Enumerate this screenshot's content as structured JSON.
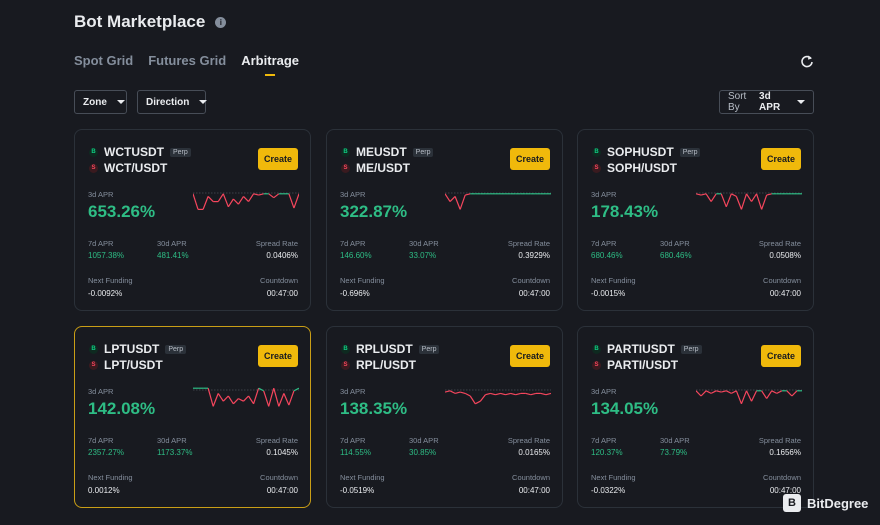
{
  "header": {
    "title": "Bot Marketplace",
    "info_icon": "info-icon"
  },
  "tabs": [
    {
      "label": "Spot Grid",
      "active": false
    },
    {
      "label": "Futures Grid",
      "active": false
    },
    {
      "label": "Arbitrage",
      "active": true
    }
  ],
  "filters": {
    "zone": "Zone",
    "direction": "Direction",
    "sort_label": "Sort By",
    "sort_value": "3d APR"
  },
  "labels": {
    "apr3d": "3d APR",
    "apr7d": "7d APR",
    "apr30d": "30d APR",
    "spread": "Spread Rate",
    "next_funding": "Next Funding",
    "countdown": "Countdown",
    "create": "Create",
    "perp": "Perp",
    "badge_b": "B",
    "badge_s": "S"
  },
  "accent_color": "#f0b90b",
  "positive_color": "#2ebd85",
  "negative_color": "#f6465d",
  "cards": [
    {
      "perp": "WCTUSDT",
      "spot": "WCT/USDT",
      "apr3d": "653.26%",
      "apr7d": "1057.38%",
      "apr30d": "481.41%",
      "spread": "0.0406%",
      "funding": "-0.0092%",
      "countdown": "00:47:00",
      "highlight": false,
      "spark": [
        0.3,
        0.9,
        0.9,
        0.4,
        0.6,
        0.6,
        0.3,
        0.8,
        0.5,
        0.7,
        0.4,
        0.6,
        0.3,
        0.35,
        0.3,
        0.3,
        0.45,
        0.3,
        0.3,
        0.3,
        0.85,
        0.3
      ]
    },
    {
      "perp": "MEUSDT",
      "spot": "ME/USDT",
      "apr3d": "322.87%",
      "apr7d": "146.60%",
      "apr30d": "33.07%",
      "spread": "0.3929%",
      "funding": "-0.696%",
      "countdown": "00:47:00",
      "highlight": false,
      "spark": [
        0.3,
        0.6,
        0.4,
        0.9,
        0.35,
        0.3,
        0.3,
        0.3,
        0.3,
        0.3,
        0.3,
        0.3,
        0.3,
        0.3,
        0.3,
        0.3,
        0.3,
        0.3,
        0.3,
        0.3,
        0.3,
        0.3
      ]
    },
    {
      "perp": "SOPHUSDT",
      "spot": "SOPH/USDT",
      "apr3d": "178.43%",
      "apr7d": "680.46%",
      "apr30d": "680.46%",
      "spread": "0.0508%",
      "funding": "-0.0015%",
      "countdown": "00:47:00",
      "highlight": false,
      "spark": [
        0.3,
        0.35,
        0.3,
        0.6,
        0.3,
        0.3,
        0.8,
        0.3,
        0.4,
        0.9,
        0.3,
        0.6,
        0.3,
        0.9,
        0.35,
        0.3,
        0.3,
        0.3,
        0.3,
        0.3,
        0.3,
        0.3
      ]
    },
    {
      "perp": "LPTUSDT",
      "spot": "LPT/USDT",
      "apr3d": "142.08%",
      "apr7d": "2357.27%",
      "apr30d": "1173.37%",
      "spread": "0.1045%",
      "funding": "0.0012%",
      "countdown": "00:47:00",
      "highlight": true,
      "spark": [
        0.2,
        0.2,
        0.2,
        0.2,
        0.9,
        0.4,
        0.7,
        0.5,
        0.8,
        0.6,
        0.7,
        0.5,
        0.8,
        0.2,
        0.3,
        0.9,
        0.2,
        0.9,
        0.4,
        0.85,
        0.3,
        0.2
      ]
    },
    {
      "perp": "RPLUSDT",
      "spot": "RPL/USDT",
      "apr3d": "138.35%",
      "apr7d": "114.55%",
      "apr30d": "30.85%",
      "spread": "0.0165%",
      "funding": "-0.0519%",
      "countdown": "00:47:00",
      "highlight": false,
      "spark": [
        0.35,
        0.3,
        0.4,
        0.35,
        0.4,
        0.5,
        0.8,
        0.7,
        0.45,
        0.4,
        0.45,
        0.4,
        0.45,
        0.4,
        0.45,
        0.4,
        0.4,
        0.45,
        0.4,
        0.4,
        0.45,
        0.4
      ]
    },
    {
      "perp": "PARTIUSDT",
      "spot": "PARTI/USDT",
      "apr3d": "134.05%",
      "apr7d": "120.37%",
      "apr30d": "73.79%",
      "spread": "0.1656%",
      "funding": "-0.0322%",
      "countdown": "00:47:00",
      "highlight": false,
      "spark": [
        0.3,
        0.5,
        0.3,
        0.4,
        0.3,
        0.35,
        0.3,
        0.4,
        0.3,
        0.8,
        0.3,
        0.7,
        0.3,
        0.3,
        0.6,
        0.3,
        0.4,
        0.3,
        0.3,
        0.5,
        0.3,
        0.3
      ]
    }
  ],
  "watermark": {
    "text": "BitDegree",
    "icon": "bitdegree-logo-icon"
  }
}
